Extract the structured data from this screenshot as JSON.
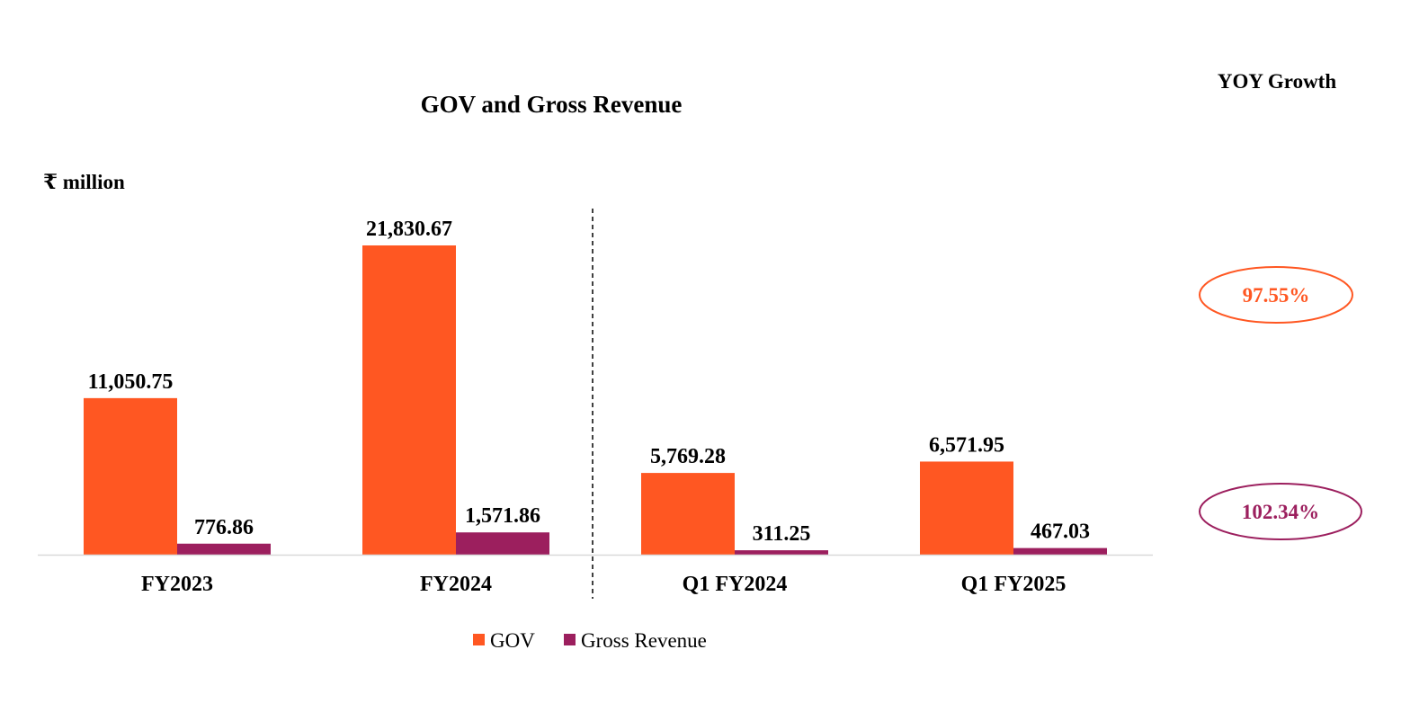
{
  "chart_data": {
    "type": "bar",
    "title": "GOV and Gross Revenue",
    "unit_label": "₹ million",
    "categories": [
      "FY2023",
      "FY2024",
      "Q1 FY2024",
      "Q1 FY2025"
    ],
    "series": [
      {
        "name": "GOV",
        "values": [
          11050.75,
          21830.67,
          5769.28,
          6571.95
        ],
        "labels": [
          "11,050.75",
          "21,830.67",
          "5,769.28",
          "6,571.95"
        ],
        "color": "#FF5722"
      },
      {
        "name": "Gross Revenue",
        "values": [
          776.86,
          1571.86,
          311.25,
          467.03
        ],
        "labels": [
          "776.86",
          "1,571.86",
          "311.25",
          "467.03"
        ],
        "color": "#9C1F5E"
      }
    ],
    "ylim": [
      0,
      21830.67
    ],
    "grid": false,
    "legend_position": "bottom-center",
    "divider": "dashed line between FY2024 and Q1 FY2024",
    "yoy_growth": {
      "title": "YOY Growth",
      "items": [
        {
          "label": "97.55%",
          "color": "#FF5722"
        },
        {
          "label": "102.34%",
          "color": "#9C1F5E"
        }
      ]
    }
  }
}
